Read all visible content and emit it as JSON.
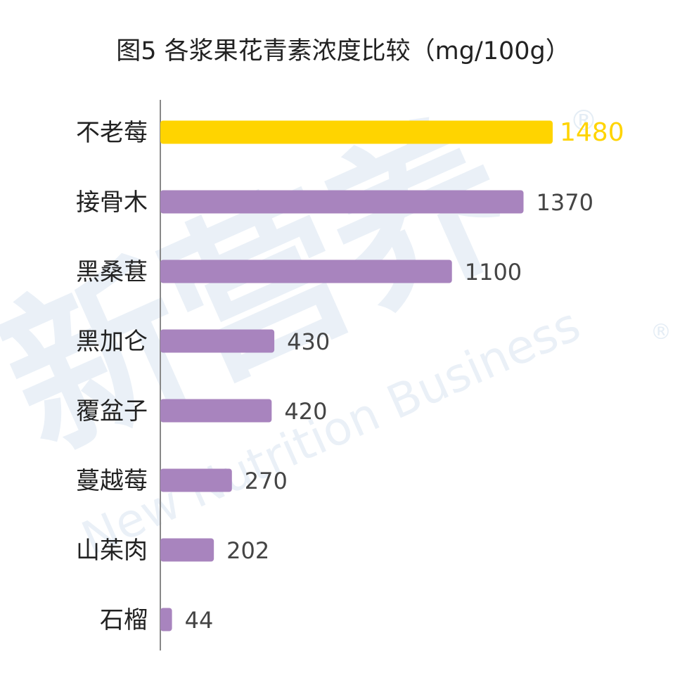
{
  "watermark": {
    "cn": "新营养",
    "en": "New Nutrition Business",
    "mark": "®"
  },
  "chart_data": {
    "type": "bar",
    "orientation": "horizontal",
    "title": "图5 各浆果花青素浓度比较（mg/100g）",
    "categories": [
      "不老莓",
      "接骨木",
      "黑桑葚",
      "黑加仑",
      "覆盆子",
      "蔓越莓",
      "山茱肉",
      "石榴"
    ],
    "values": [
      1480,
      1370,
      1100,
      430,
      420,
      270,
      202,
      44
    ],
    "value_labels": [
      "1480",
      "1370",
      "1100",
      "430",
      "420",
      "270",
      "202",
      "44"
    ],
    "highlight_index": 0,
    "xlim": [
      0,
      1480
    ],
    "grid": false,
    "legend": "none",
    "colors": {
      "highlight": "#FFD400",
      "bar": "#A884BE",
      "axis": "#888888"
    }
  }
}
